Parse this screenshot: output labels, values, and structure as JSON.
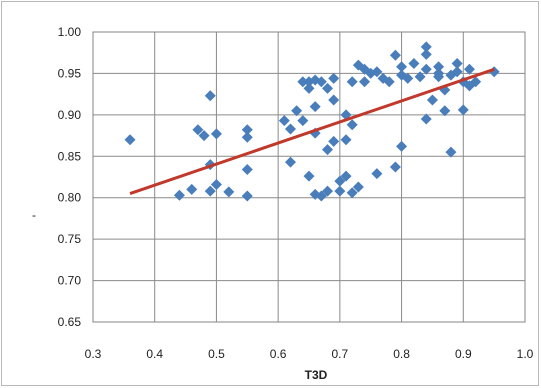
{
  "chart_data": {
    "type": "scatter",
    "title": "",
    "xlabel": "T3D",
    "ylabel": "",
    "xlim": [
      0.3,
      1.0
    ],
    "ylim": [
      0.65,
      1.0
    ],
    "x_ticks": [
      "0.3",
      "0.4",
      "0.5",
      "0.6",
      "0.7",
      "0.8",
      "0.9",
      "1.0"
    ],
    "y_ticks": [
      "0.65",
      "0.70",
      "0.75",
      "0.80",
      "0.85",
      "0.90",
      "0.95",
      "1.00"
    ],
    "grid": true,
    "legend": "none",
    "colors": {
      "points": "#4a7ebb",
      "trendline": "#c0392b",
      "grid": "#8a8a8a",
      "plot_border": "#868686",
      "frame": "#b9b9b9"
    },
    "series": [
      {
        "marker": "diamond",
        "points": [
          [
            0.36,
            0.87
          ],
          [
            0.44,
            0.803
          ],
          [
            0.46,
            0.81
          ],
          [
            0.47,
            0.882
          ],
          [
            0.48,
            0.875
          ],
          [
            0.49,
            0.923
          ],
          [
            0.49,
            0.84
          ],
          [
            0.49,
            0.808
          ],
          [
            0.5,
            0.877
          ],
          [
            0.5,
            0.816
          ],
          [
            0.52,
            0.807
          ],
          [
            0.55,
            0.882
          ],
          [
            0.55,
            0.873
          ],
          [
            0.55,
            0.834
          ],
          [
            0.55,
            0.802
          ],
          [
            0.61,
            0.893
          ],
          [
            0.62,
            0.843
          ],
          [
            0.62,
            0.883
          ],
          [
            0.63,
            0.905
          ],
          [
            0.64,
            0.94
          ],
          [
            0.64,
            0.893
          ],
          [
            0.65,
            0.94
          ],
          [
            0.65,
            0.932
          ],
          [
            0.65,
            0.826
          ],
          [
            0.66,
            0.942
          ],
          [
            0.66,
            0.91
          ],
          [
            0.66,
            0.878
          ],
          [
            0.66,
            0.804
          ],
          [
            0.67,
            0.94
          ],
          [
            0.67,
            0.802
          ],
          [
            0.68,
            0.932
          ],
          [
            0.68,
            0.858
          ],
          [
            0.68,
            0.808
          ],
          [
            0.69,
            0.944
          ],
          [
            0.69,
            0.918
          ],
          [
            0.69,
            0.868
          ],
          [
            0.7,
            0.808
          ],
          [
            0.7,
            0.82
          ],
          [
            0.71,
            0.826
          ],
          [
            0.71,
            0.87
          ],
          [
            0.71,
            0.9
          ],
          [
            0.72,
            0.94
          ],
          [
            0.72,
            0.888
          ],
          [
            0.72,
            0.806
          ],
          [
            0.73,
            0.96
          ],
          [
            0.73,
            0.813
          ],
          [
            0.74,
            0.955
          ],
          [
            0.74,
            0.94
          ],
          [
            0.75,
            0.95
          ],
          [
            0.76,
            0.952
          ],
          [
            0.76,
            0.829
          ],
          [
            0.77,
            0.944
          ],
          [
            0.78,
            0.94
          ],
          [
            0.79,
            0.972
          ],
          [
            0.79,
            0.837
          ],
          [
            0.8,
            0.958
          ],
          [
            0.8,
            0.948
          ],
          [
            0.8,
            0.862
          ],
          [
            0.81,
            0.944
          ],
          [
            0.82,
            0.962
          ],
          [
            0.83,
            0.946
          ],
          [
            0.84,
            0.982
          ],
          [
            0.84,
            0.973
          ],
          [
            0.84,
            0.955
          ],
          [
            0.84,
            0.895
          ],
          [
            0.85,
            0.918
          ],
          [
            0.86,
            0.958
          ],
          [
            0.86,
            0.95
          ],
          [
            0.86,
            0.946
          ],
          [
            0.87,
            0.93
          ],
          [
            0.87,
            0.905
          ],
          [
            0.88,
            0.948
          ],
          [
            0.88,
            0.855
          ],
          [
            0.89,
            0.962
          ],
          [
            0.89,
            0.952
          ],
          [
            0.9,
            0.94
          ],
          [
            0.9,
            0.906
          ],
          [
            0.91,
            0.955
          ],
          [
            0.91,
            0.935
          ],
          [
            0.92,
            0.94
          ],
          [
            0.95,
            0.952
          ]
        ]
      }
    ],
    "trendline": {
      "type": "linear",
      "points": [
        [
          0.36,
          0.805
        ],
        [
          0.95,
          0.955
        ]
      ]
    },
    "annotations": [
      "-"
    ]
  }
}
